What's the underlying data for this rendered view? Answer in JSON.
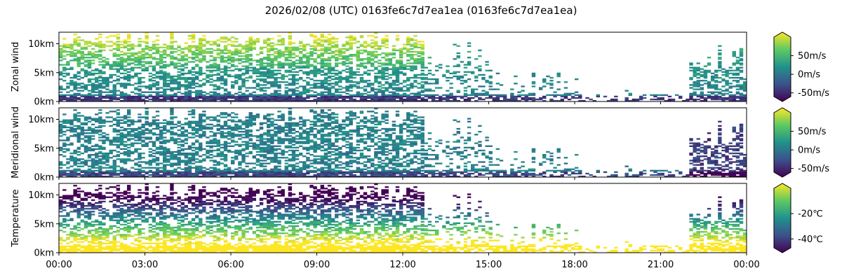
{
  "chart_data": {
    "type": "heatmap",
    "title": "2026/02/08 (UTC) 0163fe6c7d7ea1ea (0163fe6c7d7ea1ea)",
    "colormap": [
      "#440154",
      "#3b528b",
      "#21918c",
      "#5ec962",
      "#fde725"
    ],
    "x_axis": {
      "range": [
        "00:00",
        "24:00"
      ],
      "ticks": [
        {
          "value": 0,
          "label": "00:00"
        },
        {
          "value": 3,
          "label": "03:00"
        },
        {
          "value": 6,
          "label": "06:00"
        },
        {
          "value": 9,
          "label": "09:00"
        },
        {
          "value": 12,
          "label": "12:00"
        },
        {
          "value": 15,
          "label": "15:00"
        },
        {
          "value": 18,
          "label": "18:00"
        },
        {
          "value": 21,
          "label": "21:00"
        },
        {
          "value": 24,
          "label": "00:00"
        }
      ]
    },
    "y_axis": {
      "unit": "km",
      "range": [
        0,
        12
      ],
      "ticks": [
        {
          "value": 0,
          "label": "0km"
        },
        {
          "value": 5,
          "label": "5km"
        },
        {
          "value": 10,
          "label": "10km"
        }
      ]
    },
    "panels": [
      {
        "ylabel": "Zonal wind",
        "variable": "zonal",
        "colorbar": {
          "range": [
            -60,
            100
          ],
          "ticks": [
            {
              "value": 50,
              "label": "50m/s"
            },
            {
              "value": 0,
              "label": "0m/s"
            },
            {
              "value": -50,
              "label": "-50m/s"
            }
          ]
        }
      },
      {
        "ylabel": "Meridional wind",
        "variable": "meridional",
        "colorbar": {
          "range": [
            -60,
            100
          ],
          "ticks": [
            {
              "value": 50,
              "label": "50m/s"
            },
            {
              "value": 0,
              "label": "0m/s"
            },
            {
              "value": -50,
              "label": "-50m/s"
            }
          ]
        }
      },
      {
        "ylabel": "Temperature",
        "variable": "temperature",
        "colorbar": {
          "range": [
            -47,
            0
          ],
          "ticks": [
            {
              "value": -20,
              "label": "-20℃"
            },
            {
              "value": -40,
              "label": "-40℃"
            }
          ]
        }
      }
    ]
  }
}
